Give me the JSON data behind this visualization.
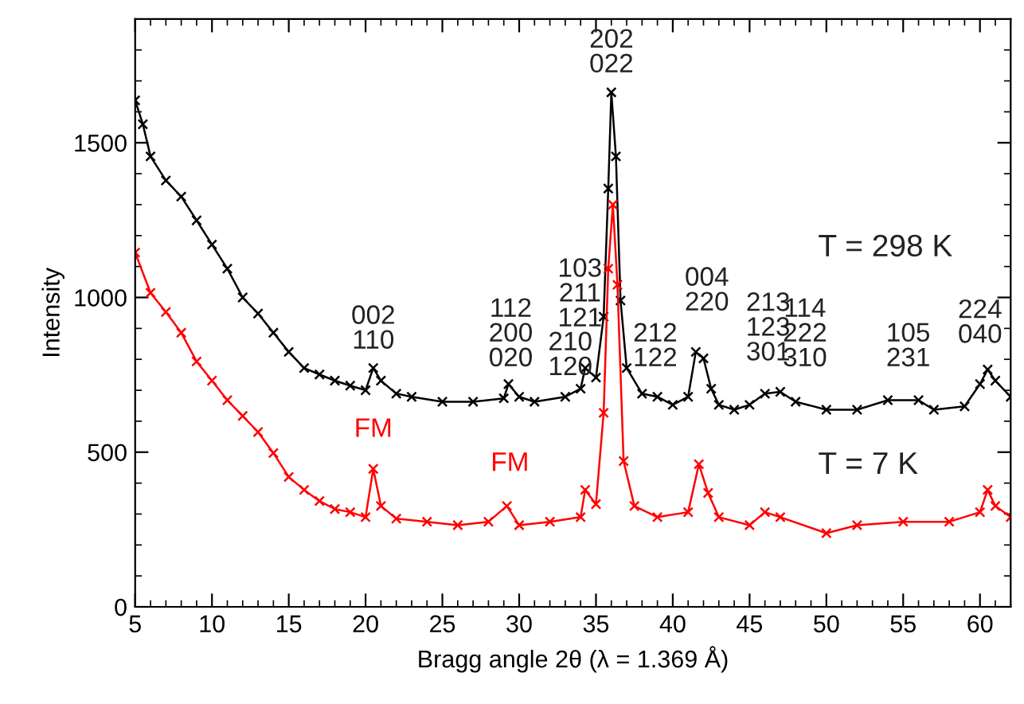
{
  "chart_data": {
    "type": "line",
    "xlabel": "Bragg angle 2θ (λ = 1.369 Å)",
    "ylabel": "Intensity",
    "xlim": [
      5,
      62
    ],
    "ylim": [
      0,
      1900
    ],
    "xticks": [
      5,
      10,
      15,
      20,
      25,
      30,
      35,
      40,
      45,
      50,
      55,
      60
    ],
    "yticks": [
      0,
      500,
      1000,
      1500
    ],
    "marker": "cross",
    "line_style": "solid",
    "grid": false,
    "legend": "right",
    "series": [
      {
        "name": "T = 298 K",
        "color": "#000000",
        "x": [
          5,
          5.5,
          6,
          7,
          8,
          9,
          10,
          11,
          12,
          13,
          14,
          15,
          16,
          17,
          18,
          19,
          20,
          20.5,
          21,
          22,
          23,
          25,
          27,
          29,
          29.3,
          30,
          31,
          33,
          34,
          34.3,
          35,
          35.5,
          35.8,
          36,
          36.3,
          36.6,
          37,
          38,
          39,
          40,
          41,
          41.5,
          42,
          42.5,
          43,
          44,
          45,
          46,
          47,
          48,
          50,
          52,
          54,
          56,
          57,
          59,
          60,
          60.5,
          61,
          62
        ],
        "values": [
          1637,
          1560,
          1456,
          1378,
          1326,
          1249,
          1171,
          1093,
          1000,
          948,
          886,
          824,
          772,
          751,
          731,
          715,
          700,
          772,
          731,
          689,
          679,
          663,
          663,
          674,
          720,
          679,
          663,
          679,
          705,
          772,
          741,
          938,
          1352,
          1663,
          1456,
          990,
          772,
          689,
          679,
          653,
          679,
          824,
          803,
          705,
          653,
          637,
          653,
          689,
          695,
          663,
          637,
          637,
          668,
          668,
          637,
          648,
          720,
          767,
          731,
          679
        ]
      },
      {
        "name": "T = 7 K",
        "color": "#ff0000",
        "x": [
          5,
          6,
          7,
          8,
          9,
          10,
          11,
          12,
          13,
          14,
          15,
          16,
          17,
          18,
          19,
          20,
          20.5,
          21,
          22,
          24,
          26,
          28,
          29.2,
          30,
          32,
          34,
          34.3,
          35,
          35.5,
          35.8,
          36.1,
          36.4,
          36.8,
          37.5,
          39,
          41,
          41.7,
          42.3,
          43,
          45,
          46,
          47,
          50,
          52,
          55,
          58,
          60,
          60.5,
          61,
          62
        ],
        "values": [
          1145,
          1015,
          953,
          886,
          793,
          731,
          668,
          617,
          565,
          497,
          420,
          378,
          342,
          316,
          306,
          290,
          446,
          326,
          285,
          275,
          264,
          275,
          326,
          264,
          275,
          290,
          378,
          332,
          627,
          1093,
          1300,
          1041,
          471,
          326,
          290,
          306,
          461,
          368,
          290,
          264,
          306,
          290,
          238,
          264,
          275,
          275,
          306,
          378,
          326,
          290
        ]
      }
    ],
    "annotations": [
      "002\n110",
      "112\n200\n020",
      "210\n120",
      "103\n211\n121",
      "202\n022",
      "212\n122",
      "004\n220",
      "213\n123\n301",
      "114\n222\n310",
      "105\n231",
      "224\n040",
      "FM",
      "FM"
    ]
  }
}
